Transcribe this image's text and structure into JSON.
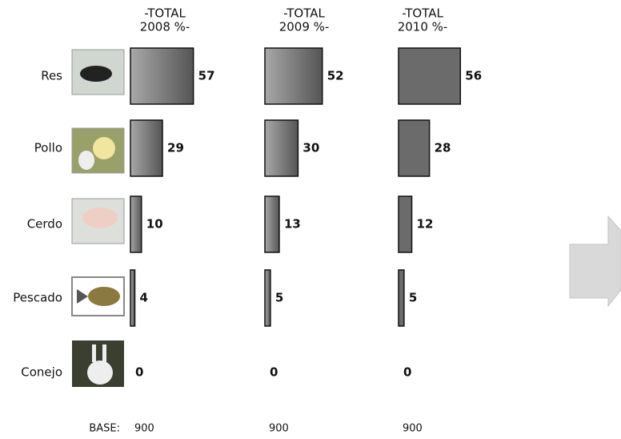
{
  "categories": [
    "Res",
    "Pollo",
    "Cerdo",
    "Pescado",
    "Conejo"
  ],
  "base_label": "BASE:",
  "chart_data": [
    {
      "type": "bar",
      "title": [
        "-TOTAL",
        "2008 %-"
      ],
      "values": [
        57,
        29,
        10,
        4,
        0
      ],
      "base": 900,
      "color": "#6e6e6e",
      "gradient": true
    },
    {
      "type": "bar",
      "title": [
        "-TOTAL",
        "2009 %-"
      ],
      "values": [
        52,
        30,
        13,
        5,
        0
      ],
      "base": 900,
      "color": "#6e6e6e",
      "gradient": true
    },
    {
      "type": "bar",
      "title": [
        "-TOTAL",
        "2010 %-"
      ],
      "values": [
        56,
        28,
        12,
        5,
        0
      ],
      "base": 900,
      "color": "#6b6b6b",
      "gradient": false
    }
  ]
}
